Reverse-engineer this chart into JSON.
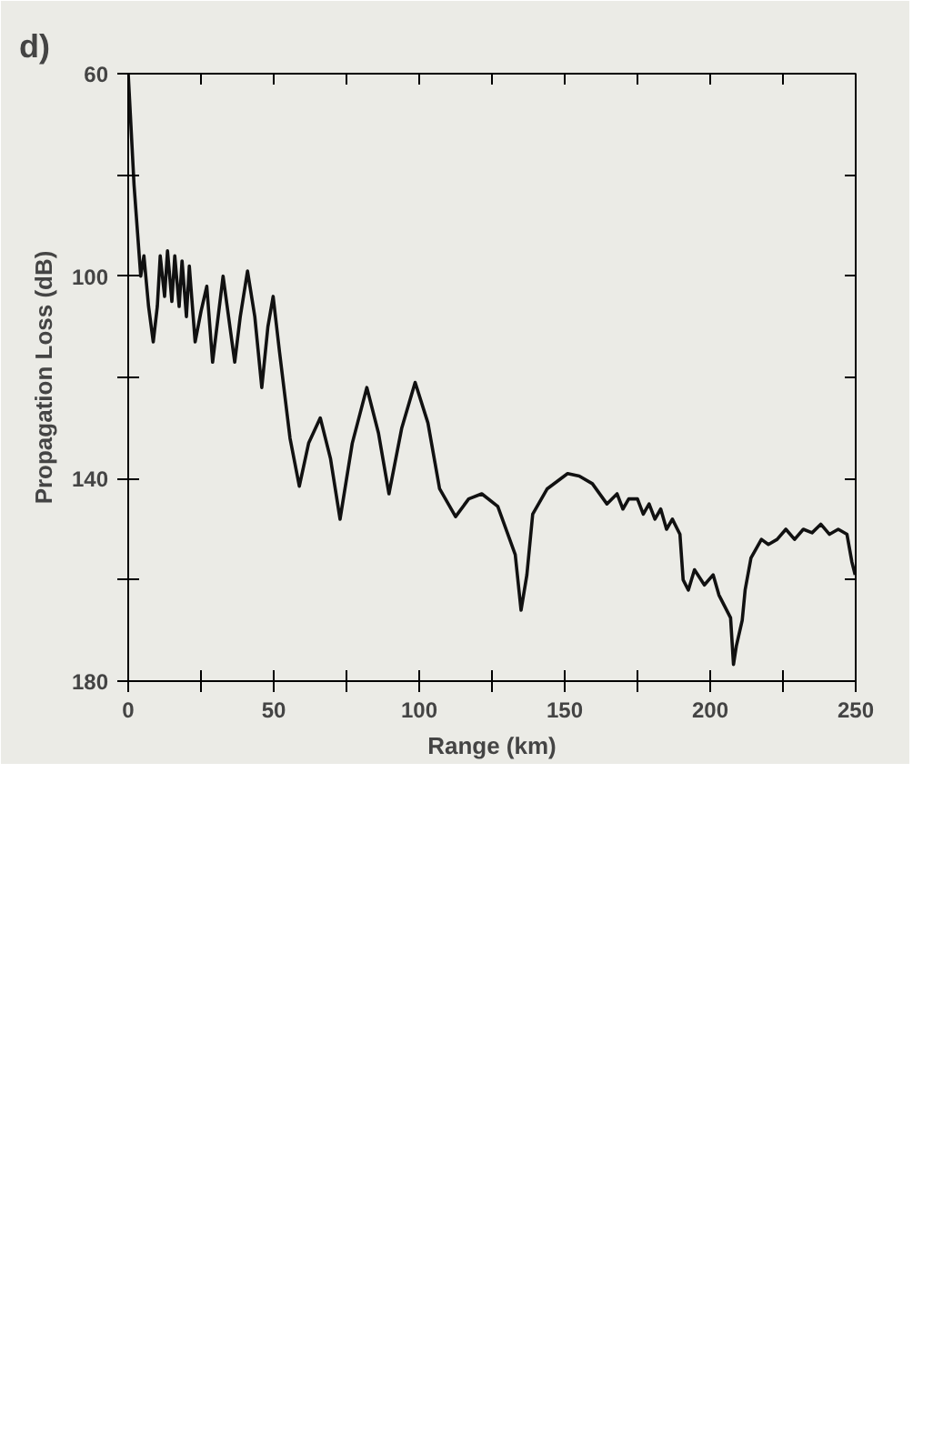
{
  "chart_data": {
    "type": "line",
    "xlabel": "Range (km)",
    "ylabel": "Propagation Loss (dB)",
    "annotations": [
      "d)"
    ],
    "xlim": [
      0,
      250
    ],
    "xticks": [
      0,
      {
        "value": 25,
        "label": null
      },
      50,
      {
        "value": 75,
        "label": null
      },
      100,
      {
        "value": 125,
        "label": null
      },
      150,
      {
        "value": 175,
        "label": null
      },
      200,
      {
        "value": 225,
        "label": null
      },
      250
    ],
    "ylim": [
      180,
      60
    ],
    "yticks": [
      {
        "value": 60,
        "label": "60"
      },
      {
        "value": 80,
        "label": null
      },
      100,
      {
        "value": 120,
        "label": null
      },
      140,
      {
        "value": 160,
        "label": null
      },
      180
    ],
    "grid": false,
    "series": [
      {
        "color": "#111111",
        "x": [
          0,
          2,
          4.3,
          5.4,
          7,
          8.6,
          10,
          11,
          12.5,
          13.5,
          15,
          16,
          17.5,
          18.5,
          20,
          21,
          23,
          25,
          27,
          29,
          32.6,
          36.6,
          38.5,
          41,
          43.5,
          45.9,
          48,
          49.8,
          52,
          55.6,
          58.8,
          62,
          66,
          69.5,
          72.8,
          77,
          82,
          86,
          89.6,
          94,
          98.6,
          103,
          107,
          112.5,
          117,
          121.5,
          127,
          133,
          135,
          137,
          139,
          144,
          151,
          155,
          159.5,
          164.5,
          168,
          170,
          172,
          175,
          177,
          179,
          181,
          183,
          185,
          187,
          189.6,
          190.7,
          192.5,
          194.6,
          198,
          201,
          203,
          207,
          208,
          209,
          211,
          212,
          214,
          217.6,
          220,
          223,
          226,
          229,
          232,
          235,
          238,
          241,
          244,
          247,
          248.7,
          249.8
        ],
        "values": [
          60,
          82,
          100,
          96,
          106,
          113,
          106,
          96,
          104,
          95,
          105,
          96,
          106,
          97,
          108,
          98,
          113,
          107,
          102,
          117,
          100,
          117,
          108,
          99,
          108,
          122,
          110,
          104,
          115,
          132,
          141.5,
          133,
          128,
          136,
          148,
          133,
          122,
          131,
          143,
          130,
          121,
          129,
          142,
          147.5,
          144,
          143,
          145.5,
          155,
          166,
          159,
          147,
          142,
          139,
          139.5,
          141,
          145,
          143,
          146,
          144,
          144,
          147,
          145,
          148,
          146,
          150,
          148,
          151,
          160,
          162,
          158,
          161,
          159,
          163,
          167.5,
          176.7,
          173,
          168,
          162,
          155.7,
          152,
          153,
          152,
          150,
          152,
          150,
          150.7,
          149,
          151,
          150,
          151,
          156.5,
          159
        ]
      }
    ]
  }
}
